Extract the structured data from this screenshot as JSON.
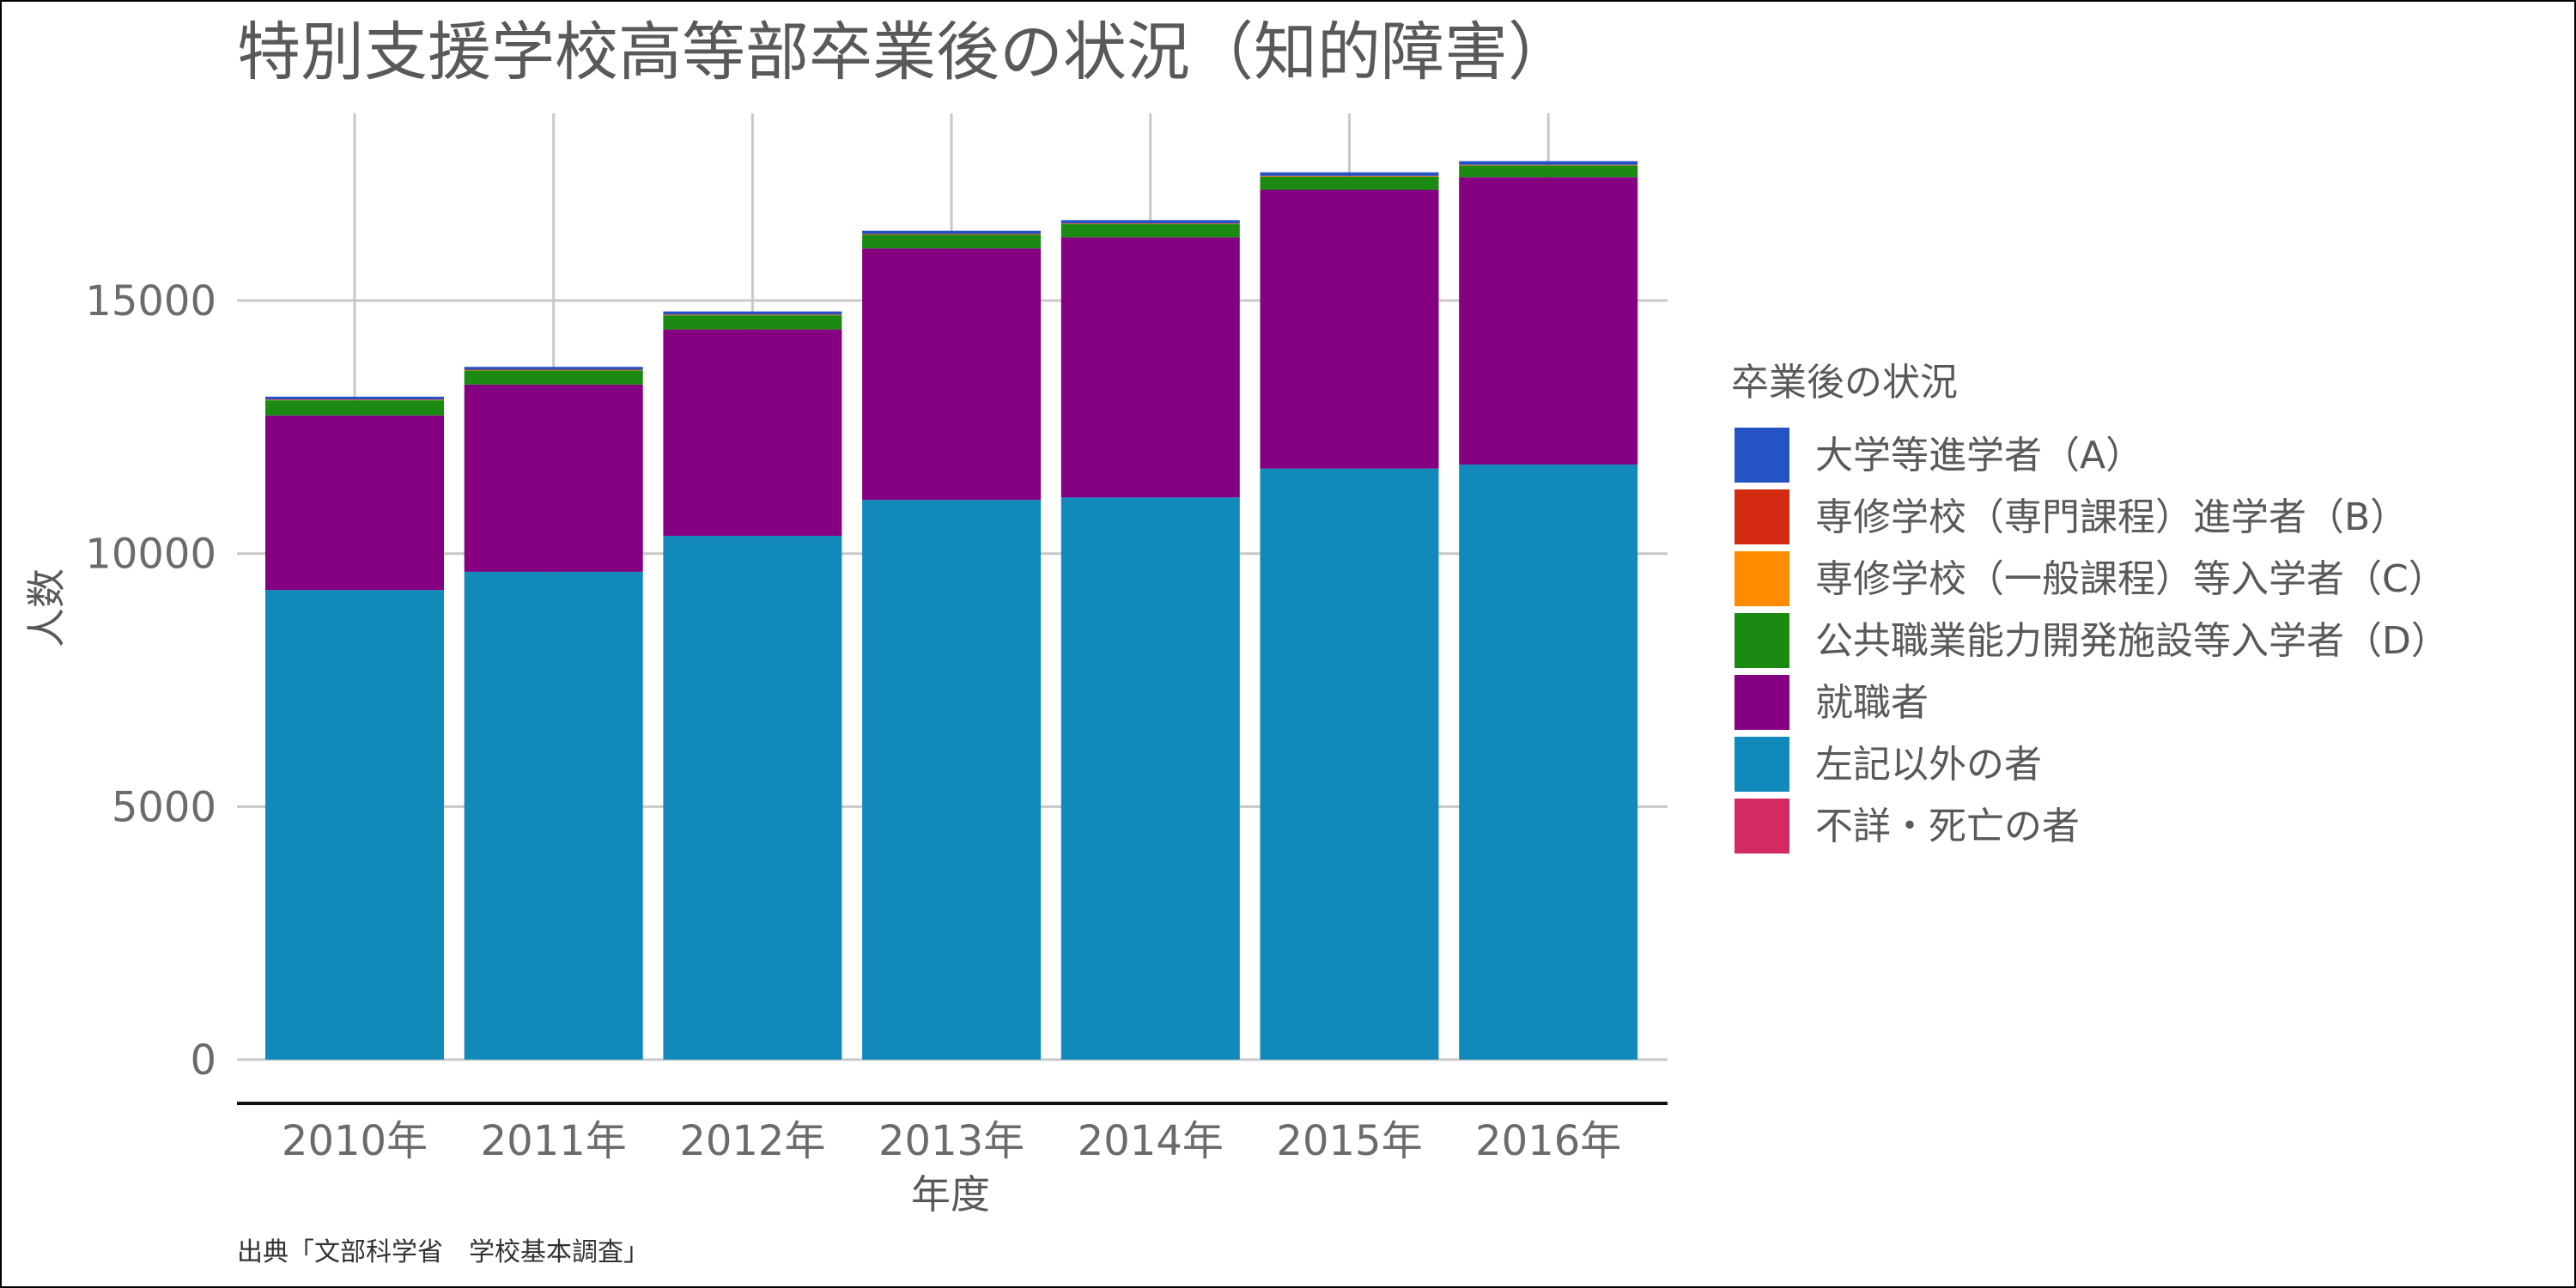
{
  "chart_data": {
    "type": "bar",
    "stacked": true,
    "title": "特別支援学校高等部卒業後の状況（知的障害）",
    "xlabel": "年度",
    "ylabel": "人数",
    "caption": "出典「文部科学省　学校基本調査」",
    "categories": [
      "2010年",
      "2011年",
      "2012年",
      "2013年",
      "2014年",
      "2015年",
      "2016年"
    ],
    "ylim": [
      0,
      18700
    ],
    "yticks": [
      0,
      5000,
      10000,
      15000
    ],
    "grid": true,
    "legend_title": "卒業後の状況",
    "legend_position": "right",
    "series": [
      {
        "name": "大学等進学者（A）",
        "color": "#2453c4",
        "values": [
          55,
          55,
          60,
          65,
          65,
          70,
          70
        ]
      },
      {
        "name": "専修学校（専門課程）進学者（B）",
        "color": "#d42a12",
        "values": [
          5,
          5,
          5,
          5,
          5,
          5,
          5
        ]
      },
      {
        "name": "専修学校（一般課程）等入学者（C）",
        "color": "#ff8c00",
        "values": [
          10,
          10,
          10,
          10,
          10,
          10,
          10
        ]
      },
      {
        "name": "公共職業能力開発施設等入学者（D）",
        "color": "#1a8a12",
        "values": [
          300,
          280,
          280,
          270,
          260,
          260,
          230
        ]
      },
      {
        "name": "就職者",
        "color": "#850080",
        "values": [
          3450,
          3700,
          4080,
          4970,
          5140,
          5510,
          5680
        ]
      },
      {
        "name": "左記以外の者",
        "color": "#1289bb",
        "values": [
          9280,
          9640,
          10350,
          11060,
          11110,
          11680,
          11760
        ]
      },
      {
        "name": "不詳・死亡の者",
        "color": "#d42a62",
        "values": [
          0,
          0,
          0,
          0,
          0,
          0,
          0
        ]
      }
    ]
  }
}
